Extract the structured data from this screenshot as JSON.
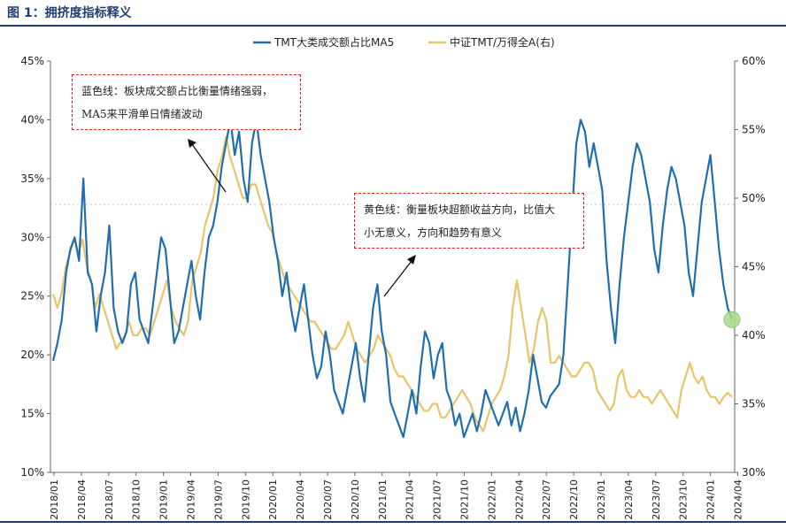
{
  "figure": {
    "title": "图 1：拥挤度指标释义"
  },
  "annotations": {
    "blue_note_line1": "蓝色线：板块成交额占比衡量情绪强弱，",
    "blue_note_line2": "MA5来平滑单日情绪波动",
    "yellow_note_line1": "黄色线：衡量板块超额收益方向，比值大",
    "yellow_note_line2": "小无意义，方向和趋势有意义"
  },
  "colors": {
    "blue": "#1f6fae",
    "yellow": "#e7c56a",
    "highlight": "#a8d98a",
    "note_border": "#e0201c",
    "title": "#1f3f70"
  },
  "chart_data": {
    "type": "line",
    "legend": {
      "position": "top",
      "entries": [
        "TMT大类成交额占比MA5",
        "中证TMT/万得全A(右)"
      ]
    },
    "x_tick_labels": [
      "2018/01",
      "2018/04",
      "2018/07",
      "2018/10",
      "2019/01",
      "2019/04",
      "2019/07",
      "2019/10",
      "2020/01",
      "2020/04",
      "2020/07",
      "2020/10",
      "2021/01",
      "2021/04",
      "2021/07",
      "2021/10",
      "2022/01",
      "2022/04",
      "2022/07",
      "2022/10",
      "2023/01",
      "2023/04",
      "2023/07",
      "2023/10",
      "2024/01",
      "2024/04"
    ],
    "y_left": {
      "ticks": [
        "10%",
        "15%",
        "20%",
        "25%",
        "30%",
        "35%",
        "40%",
        "45%"
      ],
      "range": [
        10,
        45
      ]
    },
    "y_right": {
      "ticks": [
        "30%",
        "35%",
        "40%",
        "45%",
        "50%",
        "55%",
        "60%"
      ],
      "range": [
        30,
        60
      ]
    },
    "series": [
      {
        "name": "TMT大类成交额占比MA5",
        "axis": "left",
        "color": "#1f6fae",
        "values": [
          19.5,
          21,
          23,
          27,
          29,
          30,
          28,
          35,
          27,
          26,
          22,
          25,
          27,
          31,
          24,
          22,
          21,
          22,
          26,
          27,
          23,
          22,
          21,
          24,
          27,
          30,
          29,
          25,
          21,
          22,
          24,
          26,
          28,
          25,
          23,
          27,
          30,
          31,
          33,
          36,
          38,
          40,
          37,
          39,
          35,
          33,
          38,
          40,
          37,
          35,
          33,
          30,
          28,
          25,
          27,
          24,
          22,
          24,
          26,
          23,
          20,
          18,
          19,
          22,
          20,
          17,
          16,
          15,
          17,
          19,
          21,
          18,
          16,
          20,
          24,
          26,
          22,
          20,
          16,
          15,
          14,
          13,
          15,
          17,
          15,
          19,
          22,
          21,
          18,
          20,
          21,
          17,
          16,
          14,
          15,
          13,
          14,
          15,
          13.5,
          15,
          17,
          16,
          15,
          14,
          15,
          16,
          14,
          15.5,
          13.5,
          15,
          17,
          20,
          18,
          16,
          15.5,
          16.5,
          17,
          17.5,
          20,
          26,
          32,
          38,
          40,
          39,
          36,
          38,
          36,
          34,
          28,
          24,
          21,
          26,
          30,
          33,
          36,
          38,
          37,
          35,
          33,
          29,
          27,
          31,
          34,
          36,
          35,
          33,
          31,
          27,
          25,
          29,
          33,
          35,
          37,
          33,
          29,
          26,
          24,
          23
        ]
      },
      {
        "name": "中证TMT/万得全A(右)",
        "axis": "right",
        "color": "#e7c56a",
        "values": [
          43,
          42,
          43,
          45,
          46,
          47,
          46,
          47,
          45,
          44,
          42,
          43,
          42,
          41,
          40,
          39,
          39.5,
          40,
          41,
          40,
          40,
          40.5,
          40.5,
          40,
          41,
          42,
          43,
          44,
          42,
          41,
          40.5,
          40,
          41,
          44,
          45,
          46,
          48,
          49,
          50,
          52,
          53,
          54.5,
          53,
          52,
          51,
          50,
          50,
          51,
          51,
          50,
          49,
          48,
          47.5,
          46,
          45,
          44,
          43.5,
          43,
          42.5,
          42,
          41.5,
          41,
          41,
          40.5,
          40,
          39.5,
          39,
          39,
          39.5,
          40,
          41,
          40,
          39,
          38.5,
          38,
          38.5,
          39,
          40,
          39.5,
          39,
          38.5,
          37.5,
          37,
          37,
          36.5,
          36,
          35.5,
          35,
          34.5,
          34.5,
          35,
          35,
          34,
          34,
          34.5,
          35,
          35.5,
          36,
          35.5,
          35,
          34,
          33.5,
          33,
          34,
          35,
          35.5,
          36,
          37,
          38.5,
          42,
          44,
          42,
          40,
          38,
          39,
          41,
          42,
          41,
          38,
          38,
          38.5,
          38,
          37.5,
          37,
          37,
          37.5,
          38,
          38,
          37.5,
          36,
          35.5,
          35,
          34.5,
          35,
          37,
          37.5,
          36,
          35.5,
          35.5,
          36,
          35.5,
          35.5,
          35,
          35.5,
          36,
          35.5,
          35,
          34.5,
          34,
          36,
          37,
          38,
          37,
          36.5,
          37,
          36,
          35.5,
          35.5,
          35,
          35.5,
          35.8,
          35.5
        ]
      }
    ],
    "highlight_point": {
      "series": "TMT大类成交额占比MA5",
      "x_index_from_end": 0
    }
  }
}
